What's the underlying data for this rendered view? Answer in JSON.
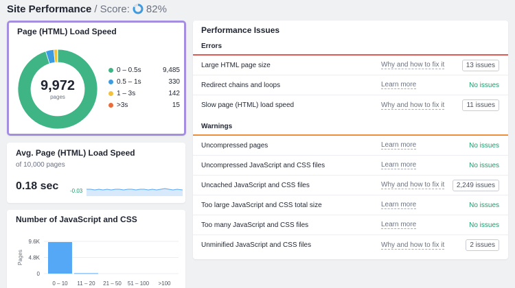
{
  "header": {
    "title": "Site Performance",
    "separator": "/",
    "score_label": "Score:",
    "score_value": "82%",
    "score_fraction": 0.82
  },
  "load_speed": {
    "title": "Page (HTML) Load Speed",
    "total": "9,972",
    "total_label": "pages",
    "legend": [
      {
        "label": "0 – 0.5s",
        "value": "9,485",
        "color": "#3fb586"
      },
      {
        "label": "0.5 – 1s",
        "value": "330",
        "color": "#3f9be0"
      },
      {
        "label": "1 – 3s",
        "value": "142",
        "color": "#f2c23d"
      },
      {
        "label": ">3s",
        "value": "15",
        "color": "#ea6c3c"
      }
    ]
  },
  "avg_speed": {
    "title": "Avg. Page (HTML) Load Speed",
    "subtitle": "of 10,000 pages",
    "value": "0.18 sec",
    "delta": "-0.03"
  },
  "js_css": {
    "title": "Number of JavaScript and CSS",
    "chart_data": {
      "type": "bar",
      "categories": [
        "0 – 10",
        "11 – 20",
        "21 – 50",
        "51 – 100",
        ">100"
      ],
      "values": [
        9400,
        120,
        0,
        0,
        0
      ],
      "ylabel": "Pages",
      "ytick_labels": [
        "9.6K",
        "4.8K",
        "0"
      ],
      "ylim": [
        0,
        9600
      ],
      "bar_color": "#55a8f5"
    }
  },
  "issues": {
    "title": "Performance Issues",
    "errors_label": "Errors",
    "errors_color": "#e05a55",
    "warnings_label": "Warnings",
    "warnings_color": "#ee8d3a",
    "errors": [
      {
        "name": "Large HTML page size",
        "link": "Why and how to fix it",
        "status": "13 issues",
        "has_issues": true
      },
      {
        "name": "Redirect chains and loops",
        "link": "Learn more",
        "status": "No issues",
        "has_issues": false
      },
      {
        "name": "Slow page (HTML) load speed",
        "link": "Why and how to fix it",
        "status": "11 issues",
        "has_issues": true
      }
    ],
    "warnings": [
      {
        "name": "Uncompressed pages",
        "link": "Learn more",
        "status": "No issues",
        "has_issues": false
      },
      {
        "name": "Uncompressed JavaScript and CSS files",
        "link": "Learn more",
        "status": "No issues",
        "has_issues": false
      },
      {
        "name": "Uncached JavaScript and CSS files",
        "link": "Why and how to fix it",
        "status": "2,249 issues",
        "has_issues": true
      },
      {
        "name": "Too large JavaScript and CSS total size",
        "link": "Learn more",
        "status": "No issues",
        "has_issues": false
      },
      {
        "name": "Too many JavaScript and CSS files",
        "link": "Learn more",
        "status": "No issues",
        "has_issues": false
      },
      {
        "name": "Unminified JavaScript and CSS files",
        "link": "Why and how to fix it",
        "status": "2 issues",
        "has_issues": true
      }
    ]
  }
}
